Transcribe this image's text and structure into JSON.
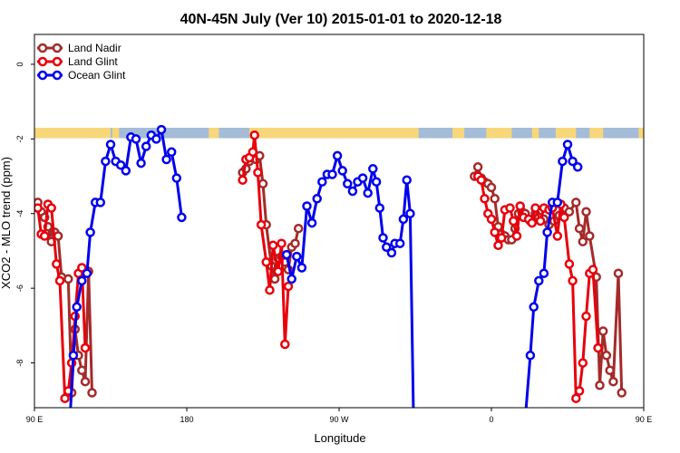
{
  "chart_data": {
    "type": "line",
    "title": "40N-45N July (Ver 10)   2015-01-01 to 2020-12-18",
    "xlabel": "Longitude",
    "ylabel": "XCO2 - MLO trend (ppm)",
    "xlim": [
      90,
      450
    ],
    "ylim": [
      -9.2,
      0.8
    ],
    "x_ticks": [
      {
        "value": 90,
        "label": "90 E"
      },
      {
        "value": 180,
        "label": "180"
      },
      {
        "value": 270,
        "label": "90 W"
      },
      {
        "value": 360,
        "label": "0"
      },
      {
        "value": 450,
        "label": "90 E"
      },
      {
        "value": 540,
        "label": "180"
      }
    ],
    "y_ticks": [
      {
        "value": 0,
        "label": "0"
      },
      {
        "value": -2,
        "label": "-2"
      },
      {
        "value": -4,
        "label": "-4"
      },
      {
        "value": -6,
        "label": "-6"
      },
      {
        "value": -8,
        "label": "-8"
      }
    ],
    "legend_position": "top-left",
    "land_ocean_strip": {
      "y_range": [
        -1.98,
        -1.7
      ],
      "ocean_color": "#a4bcd8",
      "land_color": "#f7d77a",
      "land_segments": [
        [
          90,
          135
        ],
        [
          136,
          140
        ],
        [
          193,
          199
        ],
        [
          217,
          317
        ],
        [
          337,
          344
        ],
        [
          357,
          372
        ],
        [
          384,
          388
        ],
        [
          398,
          410
        ],
        [
          418,
          426
        ],
        [
          447,
          495
        ],
        [
          526,
          530
        ]
      ]
    },
    "series": [
      {
        "name": "Land Nadir",
        "color": "#a52a2a",
        "segments": [
          [
            [
              92,
              -3.7
            ],
            [
              94,
              -3.95
            ],
            [
              96,
              -4.1
            ],
            [
              98,
              -4.35
            ],
            [
              100,
              -4.75
            ],
            [
              102,
              -4.5
            ],
            [
              104,
              -4.6
            ],
            [
              106,
              -5.7
            ],
            [
              110,
              -5.75
            ],
            [
              112,
              -8.8
            ],
            [
              114,
              -7.1
            ],
            [
              116,
              -7.8
            ],
            [
              118,
              -8.2
            ],
            [
              120,
              -8.5
            ],
            [
              122,
              -5.55
            ],
            [
              124,
              -8.8
            ]
          ],
          [
            [
              213,
              -2.9
            ],
            [
              215,
              -2.8
            ],
            [
              217,
              -2.6
            ],
            [
              219,
              -2.5
            ],
            [
              221,
              -2.55
            ],
            [
              223,
              -2.45
            ],
            [
              225,
              -3.2
            ],
            [
              227,
              -4.3
            ],
            [
              230,
              -5.4
            ],
            [
              232,
              -5.75
            ],
            [
              234,
              -5.2
            ],
            [
              236,
              -5.15
            ],
            [
              238,
              -5.3
            ],
            [
              240,
              -5.5
            ],
            [
              242,
              -4.9
            ],
            [
              244,
              -4.8
            ],
            [
              246,
              -4.4
            ]
          ],
          [
            [
              350,
              -3.0
            ],
            [
              352,
              -2.75
            ],
            [
              354,
              -3.05
            ],
            [
              356,
              -3.15
            ],
            [
              358,
              -3.2
            ],
            [
              360,
              -3.3
            ],
            [
              362,
              -3.6
            ],
            [
              364,
              -4.35
            ],
            [
              366,
              -4.55
            ],
            [
              368,
              -4.6
            ],
            [
              370,
              -4.7
            ],
            [
              372,
              -4.7
            ],
            [
              374,
              -4.4
            ],
            [
              376,
              -4.0
            ],
            [
              378,
              -3.95
            ],
            [
              380,
              -4.0
            ],
            [
              383,
              -4.2
            ],
            [
              386,
              -4.0
            ],
            [
              388,
              -4.1
            ],
            [
              391,
              -4.15
            ],
            [
              394,
              -4.3
            ],
            [
              397,
              -4.2
            ],
            [
              400,
              -4.05
            ],
            [
              403,
              -3.85
            ],
            [
              406,
              -3.95
            ],
            [
              410,
              -3.7
            ],
            [
              412,
              -4.4
            ],
            [
              414,
              -4.75
            ],
            [
              416,
              -3.95
            ],
            [
              418,
              -4.6
            ],
            [
              422,
              -5.7
            ],
            [
              424,
              -8.6
            ],
            [
              426,
              -7.15
            ],
            [
              428,
              -7.8
            ],
            [
              430,
              -8.2
            ],
            [
              432,
              -8.5
            ],
            [
              435,
              -5.6
            ],
            [
              437,
              -8.8
            ]
          ]
        ]
      },
      {
        "name": "Land Glint",
        "color": "#e8000b",
        "segments": [
          [
            [
              92,
              -3.85
            ],
            [
              94,
              -4.55
            ],
            [
              96,
              -4.6
            ],
            [
              98,
              -3.75
            ],
            [
              100,
              -3.85
            ],
            [
              103,
              -5.35
            ],
            [
              105,
              -5.8
            ],
            [
              108,
              -8.95
            ],
            [
              110,
              -8.75
            ],
            [
              112,
              -8.0
            ],
            [
              114,
              -6.75
            ],
            [
              116,
              -5.6
            ],
            [
              118,
              -5.45
            ],
            [
              120,
              -7.6
            ]
          ],
          [
            [
              213,
              -3.1
            ],
            [
              215,
              -2.55
            ],
            [
              217,
              -2.5
            ],
            [
              219,
              -2.35
            ],
            [
              220,
              -1.9
            ],
            [
              222,
              -2.9
            ],
            [
              224,
              -4.3
            ],
            [
              227,
              -5.3
            ],
            [
              229,
              -6.05
            ],
            [
              231,
              -4.85
            ],
            [
              234,
              -5.55
            ],
            [
              236,
              -4.8
            ],
            [
              238,
              -7.5
            ],
            [
              240,
              -5.95
            ]
          ],
          [
            [
              352,
              -3.0
            ],
            [
              354,
              -3.1
            ],
            [
              356,
              -3.6
            ],
            [
              358,
              -4.0
            ],
            [
              360,
              -4.15
            ],
            [
              362,
              -4.5
            ],
            [
              364,
              -4.85
            ],
            [
              366,
              -4.65
            ],
            [
              368,
              -3.9
            ],
            [
              371,
              -3.85
            ],
            [
              373,
              -4.2
            ],
            [
              375,
              -4.6
            ],
            [
              377,
              -3.8
            ],
            [
              379,
              -4.1
            ],
            [
              382,
              -4.15
            ],
            [
              384,
              -4.25
            ],
            [
              386,
              -3.85
            ],
            [
              389,
              -4.2
            ],
            [
              391,
              -3.85
            ],
            [
              394,
              -3.9
            ],
            [
              396,
              -3.85
            ],
            [
              399,
              -4.6
            ],
            [
              401,
              -3.75
            ],
            [
              403,
              -4.1
            ],
            [
              406,
              -5.35
            ],
            [
              408,
              -5.8
            ],
            [
              410,
              -8.95
            ],
            [
              412,
              -8.75
            ],
            [
              414,
              -8.0
            ],
            [
              416,
              -6.75
            ],
            [
              418,
              -5.6
            ],
            [
              420,
              -5.5
            ],
            [
              423,
              -7.6
            ]
          ]
        ]
      },
      {
        "name": "Ocean Glint",
        "color": "#0000ee",
        "segments": [
          [
            [
              111,
              -9.5
            ],
            [
              113,
              -7.8
            ],
            [
              115,
              -6.5
            ],
            [
              118,
              -5.8
            ],
            [
              121,
              -5.6
            ],
            [
              123,
              -4.5
            ],
            [
              126,
              -3.7
            ],
            [
              129,
              -3.7
            ],
            [
              132,
              -2.6
            ],
            [
              135,
              -2.15
            ],
            [
              138,
              -2.6
            ],
            [
              141,
              -2.7
            ],
            [
              144,
              -2.85
            ],
            [
              147,
              -1.95
            ],
            [
              150,
              -2.0
            ],
            [
              153,
              -2.65
            ],
            [
              156,
              -2.2
            ],
            [
              159,
              -1.9
            ],
            [
              162,
              -2.0
            ],
            [
              165,
              -1.75
            ],
            [
              168,
              -2.55
            ],
            [
              171,
              -2.35
            ],
            [
              174,
              -3.05
            ],
            [
              177,
              -4.1
            ]
          ],
          [
            [
              239,
              -5.1
            ],
            [
              242,
              -5.75
            ],
            [
              245,
              -5.15
            ],
            [
              248,
              -5.45
            ],
            [
              251,
              -3.8
            ],
            [
              254,
              -4.25
            ],
            [
              257,
              -3.6
            ],
            [
              260,
              -3.15
            ],
            [
              263,
              -2.95
            ],
            [
              266,
              -2.95
            ],
            [
              269,
              -2.45
            ],
            [
              272,
              -2.85
            ],
            [
              275,
              -3.2
            ],
            [
              278,
              -3.4
            ],
            [
              281,
              -3.15
            ],
            [
              284,
              -3.05
            ],
            [
              287,
              -3.45
            ],
            [
              290,
              -2.8
            ],
            [
              292,
              -3.15
            ],
            [
              294,
              -3.85
            ],
            [
              296,
              -4.65
            ],
            [
              298,
              -4.9
            ],
            [
              301,
              -5.05
            ],
            [
              303,
              -4.8
            ],
            [
              306,
              -4.8
            ],
            [
              308,
              -4.15
            ],
            [
              310,
              -3.1
            ],
            [
              312,
              -4.0
            ],
            [
              314,
              -9.5
            ]
          ],
          [
            [
              380,
              -9.5
            ],
            [
              383,
              -7.8
            ],
            [
              385,
              -6.5
            ],
            [
              388,
              -5.8
            ],
            [
              391,
              -5.6
            ],
            [
              393,
              -4.5
            ],
            [
              396,
              -3.7
            ],
            [
              399,
              -3.7
            ],
            [
              402,
              -2.6
            ],
            [
              405,
              -2.15
            ],
            [
              408,
              -2.6
            ],
            [
              411,
              -2.75
            ]
          ]
        ]
      }
    ]
  }
}
